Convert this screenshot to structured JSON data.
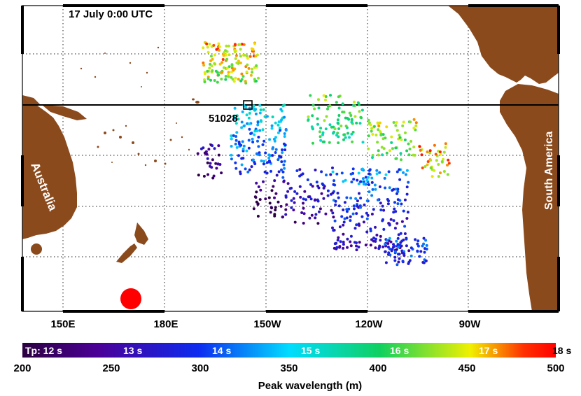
{
  "map": {
    "timestamp": "17 July 0:00 UTC",
    "buoy_label": "51028",
    "continents": {
      "australia": "Australia",
      "south_america": "South America"
    },
    "longitude_labels": [
      "150E",
      "180E",
      "150W",
      "120W",
      "90W"
    ],
    "colors": {
      "land": "#8b4a1c",
      "ocean": "#ffffff",
      "storm_source": "#ff0000",
      "frame": "#000000"
    }
  },
  "colorbar": {
    "period_labels": [
      "Tp: 12 s",
      "13 s",
      "14 s",
      "15 s",
      "16 s",
      "17 s",
      "18 s"
    ],
    "wavelength_ticks": [
      "200",
      "250",
      "300",
      "350",
      "400",
      "450",
      "500"
    ],
    "axis_label": "Peak wavelength (m)",
    "wavelength_range": [
      200,
      500
    ],
    "stops": [
      "#2b0040",
      "#4b0096",
      "#0d2bf0",
      "#00dcff",
      "#10d060",
      "#f0f000",
      "#ff3000",
      "#ff0000"
    ]
  }
}
